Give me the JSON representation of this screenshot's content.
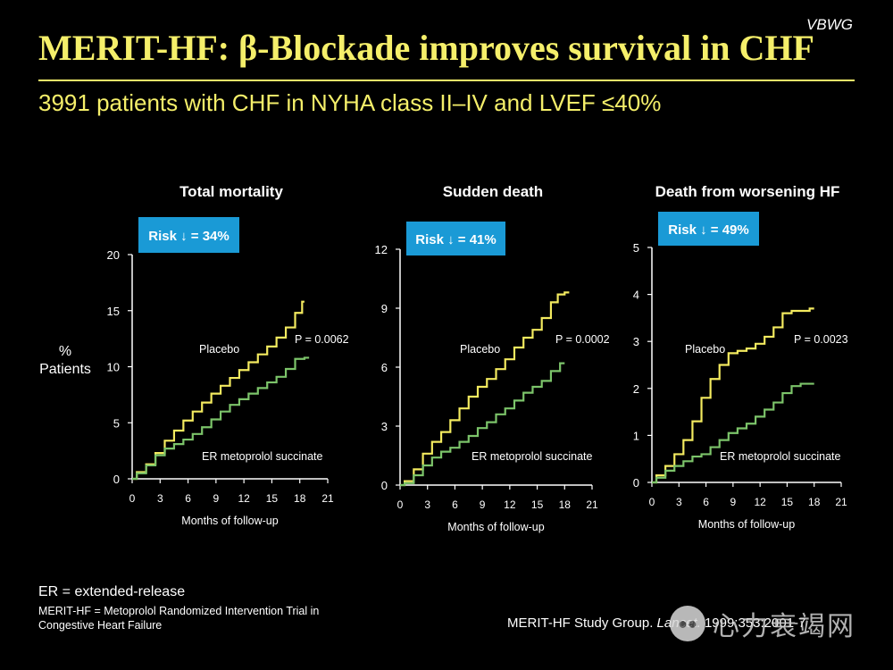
{
  "header": {
    "badge": "VBWG",
    "title": "MERIT-HF: β-Blockade improves survival in CHF",
    "subtitle": "3991 patients with CHF in NYHA class II–IV and LVEF ≤40%"
  },
  "colors": {
    "title": "#f5ef6a",
    "placebo": "#f3ea5f",
    "metoprolol": "#7cc46a",
    "risk_box": "#1a9ad6",
    "axis": "#ffffff"
  },
  "y_axis_label": [
    "%",
    "Patients"
  ],
  "chart_data": [
    {
      "type": "line",
      "title": "Total mortality",
      "risk_label": "Risk ↓ = 34%",
      "p_value": "P = 0.0062",
      "xlabel": "Months of follow-up",
      "xlim": [
        0,
        21
      ],
      "ylim": [
        0,
        20
      ],
      "xticks": [
        0,
        3,
        6,
        9,
        12,
        15,
        18,
        21
      ],
      "yticks": [
        0,
        5,
        10,
        15,
        20
      ],
      "series": [
        {
          "name": "Placebo",
          "x": [
            0,
            1,
            2,
            3,
            4,
            5,
            6,
            7,
            8,
            9,
            10,
            11,
            12,
            13,
            14,
            15,
            16,
            17,
            18,
            18.5
          ],
          "y": [
            0,
            0.6,
            1.3,
            2.3,
            3.4,
            4.3,
            5.2,
            6.0,
            6.8,
            7.6,
            8.3,
            9.0,
            9.7,
            10.4,
            11.1,
            11.8,
            12.6,
            13.5,
            14.8,
            15.8
          ]
        },
        {
          "name": "ER metoprolol succinate",
          "x": [
            0,
            1,
            2,
            3,
            4,
            5,
            6,
            7,
            8,
            9,
            10,
            11,
            12,
            13,
            14,
            15,
            16,
            17,
            18,
            19
          ],
          "y": [
            0,
            0.5,
            1.2,
            2.1,
            2.7,
            3.1,
            3.5,
            4.0,
            4.6,
            5.3,
            6.0,
            6.6,
            7.1,
            7.6,
            8.1,
            8.6,
            9.1,
            9.8,
            10.7,
            10.8
          ]
        }
      ]
    },
    {
      "type": "line",
      "title": "Sudden death",
      "risk_label": "Risk ↓ = 41%",
      "p_value": "P = 0.0002",
      "xlabel": "Months of follow-up",
      "xlim": [
        0,
        21
      ],
      "ylim": [
        0,
        12
      ],
      "xticks": [
        0,
        3,
        6,
        9,
        12,
        15,
        18,
        21
      ],
      "yticks": [
        0,
        3,
        6,
        9,
        12
      ],
      "series": [
        {
          "name": "Placebo",
          "x": [
            0,
            1,
            2,
            3,
            4,
            5,
            6,
            7,
            8,
            9,
            10,
            11,
            12,
            13,
            14,
            15,
            16,
            17,
            17.5,
            18.5
          ],
          "y": [
            0,
            0.2,
            0.8,
            1.6,
            2.2,
            2.7,
            3.3,
            3.9,
            4.5,
            5.0,
            5.4,
            5.9,
            6.4,
            7.0,
            7.5,
            7.9,
            8.5,
            9.3,
            9.7,
            9.8
          ]
        },
        {
          "name": "ER metoprolol succinate",
          "x": [
            0,
            1,
            2,
            3,
            4,
            5,
            6,
            7,
            8,
            9,
            10,
            11,
            12,
            13,
            14,
            15,
            16,
            17,
            18
          ],
          "y": [
            0,
            0.1,
            0.5,
            1.0,
            1.4,
            1.7,
            1.9,
            2.2,
            2.5,
            2.9,
            3.2,
            3.6,
            3.9,
            4.3,
            4.7,
            5.0,
            5.3,
            5.8,
            6.2
          ]
        }
      ]
    },
    {
      "type": "line",
      "title": "Death from worsening HF",
      "risk_label": "Risk ↓ = 49%",
      "p_value": "P = 0.0023",
      "xlabel": "Months of follow-up",
      "xlim": [
        0,
        21
      ],
      "ylim": [
        0,
        5
      ],
      "xticks": [
        0,
        3,
        6,
        9,
        12,
        15,
        18,
        21
      ],
      "yticks": [
        0,
        1,
        2,
        3,
        4,
        5
      ],
      "series": [
        {
          "name": "Placebo",
          "x": [
            0,
            1,
            2,
            3,
            4,
            5,
            6,
            7,
            8,
            9,
            10,
            11,
            12,
            13,
            14,
            15,
            16,
            17,
            18
          ],
          "y": [
            0,
            0.15,
            0.35,
            0.6,
            0.9,
            1.3,
            1.8,
            2.2,
            2.5,
            2.75,
            2.8,
            2.85,
            2.95,
            3.1,
            3.3,
            3.6,
            3.65,
            3.65,
            3.7
          ]
        },
        {
          "name": "ER metoprolol succinate",
          "x": [
            0,
            1,
            2,
            3,
            4,
            5,
            6,
            7,
            8,
            9,
            10,
            11,
            12,
            13,
            14,
            15,
            16,
            17,
            18
          ],
          "y": [
            0,
            0.1,
            0.25,
            0.35,
            0.45,
            0.55,
            0.6,
            0.75,
            0.9,
            1.05,
            1.15,
            1.25,
            1.4,
            1.55,
            1.7,
            1.9,
            2.05,
            2.1,
            2.1
          ]
        }
      ]
    }
  ],
  "footer": {
    "abbrev": "ER = extended-release",
    "definition": "MERIT-HF = Metoprolol Randomized Intervention Trial in Congestive Heart Failure",
    "citation_prefix": "MERIT-HF Study Group.",
    "citation_journal": "Lancet.",
    "citation_ref": "1999;353:2001-7",
    "watermark": "心力衰竭网"
  }
}
